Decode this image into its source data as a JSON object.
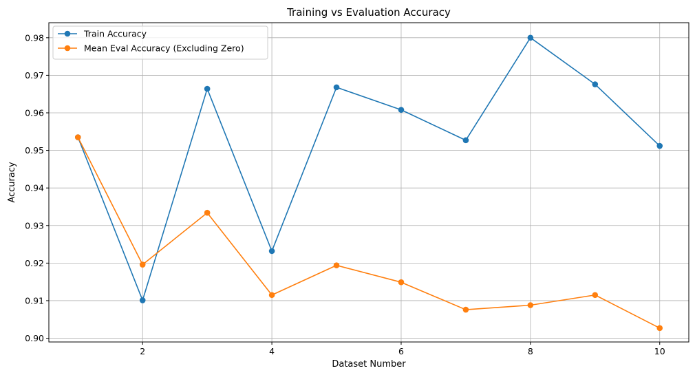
{
  "chart_data": {
    "type": "line",
    "title": "Training vs Evaluation Accuracy",
    "xlabel": "Dataset Number",
    "ylabel": "Accuracy",
    "x": [
      1,
      2,
      3,
      4,
      5,
      6,
      7,
      8,
      9,
      10
    ],
    "xlim": [
      0.55,
      10.45
    ],
    "ylim": [
      0.899,
      0.984
    ],
    "xticks": [
      2,
      4,
      6,
      8,
      10
    ],
    "yticks": [
      0.9,
      0.91,
      0.92,
      0.93,
      0.94,
      0.95,
      0.96,
      0.97,
      0.98
    ],
    "xtick_labels": [
      "2",
      "4",
      "6",
      "8",
      "10"
    ],
    "ytick_labels": [
      "0.90",
      "0.91",
      "0.92",
      "0.93",
      "0.94",
      "0.95",
      "0.96",
      "0.97",
      "0.98"
    ],
    "grid": true,
    "legend_position": "top-left",
    "series": [
      {
        "name": "Train Accuracy",
        "color": "#1f77b4",
        "marker": "circle",
        "values": [
          0.9535,
          0.9101,
          0.9664,
          0.9232,
          0.9668,
          0.9608,
          0.9527,
          0.98,
          0.9676,
          0.9512
        ]
      },
      {
        "name": "Mean Eval Accuracy (Excluding Zero)",
        "color": "#ff7f0e",
        "marker": "circle",
        "values": [
          0.9535,
          0.9196,
          0.9334,
          0.9115,
          0.9194,
          0.9149,
          0.9076,
          0.9088,
          0.9115,
          0.9027
        ]
      }
    ]
  }
}
